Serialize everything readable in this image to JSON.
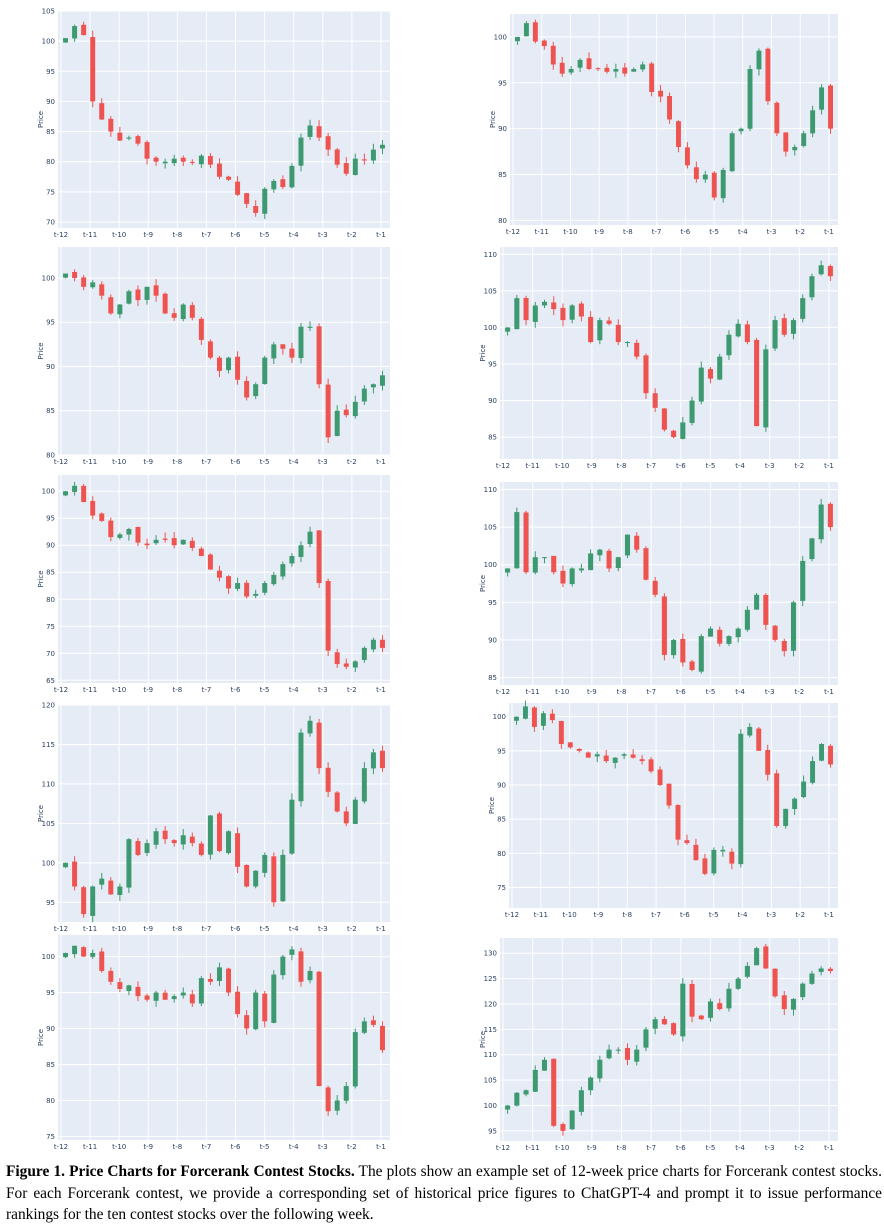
{
  "figure": {
    "caption_title": "Figure 1. Price Charts for Forcerank Contest Stocks.",
    "caption_body": "The plots show an example set of 12-week price charts for Forcerank contest stocks. For each Forcerank contest, we provide a corresponding set of historical price figures to ChatGPT-4 and prompt it to issue performance rankings for the ten contest stocks over the following week."
  },
  "colors": {
    "increasing": "#3d9970",
    "decreasing": "#ef5350",
    "plot_bg": "#e5ecf6",
    "grid": "#ffffff",
    "text": "#2a3f5f"
  },
  "chart_data": [
    {
      "type": "candlestick",
      "ylabel": "Price",
      "ylim": [
        69,
        105
      ],
      "yticks": [
        70,
        75,
        80,
        85,
        90,
        95,
        100,
        105
      ],
      "xticks": [
        "t-12",
        "t-11",
        "t-10",
        "t-9",
        "t-8",
        "t-7",
        "t-6",
        "t-5",
        "t-4",
        "t-3",
        "t-2",
        "t-1"
      ],
      "path": [
        100.5,
        102.5,
        101,
        90,
        87,
        85,
        83.5,
        84,
        83,
        80.5,
        80,
        80,
        80.5,
        80,
        79.8,
        81,
        79.5,
        77.5,
        77,
        74.5,
        73,
        71.5,
        75.5,
        76.8,
        75.8,
        79.3,
        84,
        86,
        84,
        82,
        79.5,
        78,
        80.5,
        80.2,
        82,
        82.8
      ]
    },
    {
      "type": "candlestick",
      "ylabel": "Price",
      "ylim": [
        79.5,
        102.5
      ],
      "yticks": [
        80,
        85,
        90,
        95,
        100
      ],
      "xticks": [
        "t-12",
        "t-11",
        "t-10",
        "t-9",
        "t-8",
        "t-7",
        "t-6",
        "t-5",
        "t-4",
        "t-3",
        "t-2",
        "t-1"
      ],
      "path": [
        100,
        101.5,
        99.5,
        99,
        97,
        96,
        96.5,
        97.5,
        96.5,
        96.5,
        96.2,
        96.5,
        96,
        96.5,
        97,
        94,
        93.5,
        91,
        88,
        86,
        84.5,
        85,
        82.5,
        85.5,
        89.5,
        90,
        96.5,
        98.5,
        93,
        89.5,
        87.5,
        88,
        89.5,
        92,
        94.5,
        90
      ]
    },
    {
      "type": "candlestick",
      "ylabel": "Price",
      "ylim": [
        80,
        103.5
      ],
      "yticks": [
        80,
        85,
        90,
        95,
        100
      ],
      "xticks": [
        "t-12",
        "t-11",
        "t-10",
        "t-9",
        "t-8",
        "t-7",
        "t-6",
        "t-5",
        "t-4",
        "t-3",
        "t-2",
        "t-1"
      ],
      "path": [
        100.5,
        100,
        99,
        99.5,
        98,
        96,
        97,
        98.5,
        97.5,
        99,
        98,
        96,
        95.5,
        97,
        95.5,
        93,
        91,
        89.5,
        91,
        88.5,
        86.5,
        88,
        91,
        92.5,
        92,
        91,
        94.5,
        94.5,
        88,
        82,
        85,
        84.5,
        86,
        87.5,
        88,
        89
      ]
    },
    {
      "type": "candlestick",
      "ylabel": "Price",
      "ylim": [
        82,
        111
      ],
      "yticks": [
        85,
        90,
        95,
        100,
        105,
        110
      ],
      "xticks": [
        "t-12",
        "t-11",
        "t-10",
        "t-9",
        "t-8",
        "t-7",
        "t-6",
        "t-5",
        "t-4",
        "t-3",
        "t-2",
        "t-1"
      ],
      "path": [
        100,
        104,
        101,
        103,
        103.5,
        102.5,
        101,
        103,
        101.5,
        98,
        101,
        100.5,
        98,
        98,
        96,
        91,
        89,
        86,
        85,
        87,
        90,
        94.5,
        93,
        96,
        99,
        100.5,
        98,
        86.5,
        97,
        101,
        99,
        101,
        104,
        107,
        108.5,
        107
      ]
    },
    {
      "type": "candlestick",
      "ylabel": "Price",
      "ylim": [
        64.5,
        103
      ],
      "yticks": [
        65,
        70,
        75,
        80,
        85,
        90,
        95,
        100
      ],
      "xticks": [
        "t-12",
        "t-11",
        "t-10",
        "t-9",
        "t-8",
        "t-7",
        "t-6",
        "t-5",
        "t-4",
        "t-3",
        "t-2",
        "t-1"
      ],
      "path": [
        100,
        101,
        98,
        95.5,
        94.5,
        91.5,
        92,
        93,
        90.5,
        90,
        91,
        91,
        90,
        91,
        89.5,
        88,
        85.5,
        84,
        82,
        83,
        80.5,
        81,
        83,
        84.5,
        86.5,
        88,
        90,
        92.5,
        83,
        70.5,
        68,
        67.5,
        68.5,
        71,
        72.5,
        71
      ]
    },
    {
      "type": "candlestick",
      "ylabel": "Price",
      "ylim": [
        84,
        111
      ],
      "yticks": [
        85,
        90,
        95,
        100,
        105,
        110
      ],
      "xticks": [
        "t-12",
        "t-11",
        "t-10",
        "t-9",
        "t-8",
        "t-7",
        "t-6",
        "t-5",
        "t-4",
        "t-3",
        "t-2",
        "t-1"
      ],
      "path": [
        99.5,
        107,
        99,
        101,
        101,
        99,
        97.5,
        99.5,
        99.5,
        101.5,
        102,
        99.5,
        101,
        104,
        102,
        98,
        96,
        88,
        90,
        87,
        86,
        90.5,
        91.5,
        89.5,
        90.5,
        91.5,
        94,
        96,
        92,
        90,
        88.5,
        95,
        100.5,
        103.5,
        108,
        105
      ]
    },
    {
      "type": "candlestick",
      "ylabel": "Price",
      "ylim": [
        92.5,
        120
      ],
      "yticks": [
        95,
        100,
        105,
        110,
        115,
        120
      ],
      "xticks": [
        "t-12",
        "t-11",
        "t-10",
        "t-9",
        "t-8",
        "t-7",
        "t-6",
        "t-5",
        "t-4",
        "t-3",
        "t-2",
        "t-1"
      ],
      "path": [
        100,
        97,
        93.5,
        97,
        98,
        96,
        97,
        103,
        101,
        102.5,
        104,
        103,
        102.5,
        103.5,
        102.5,
        101,
        106,
        101.5,
        104,
        99.5,
        97,
        99,
        101,
        95,
        101,
        108,
        116.5,
        118,
        112,
        109,
        106.5,
        105,
        108,
        112,
        114,
        112
      ]
    },
    {
      "type": "candlestick",
      "ylabel": "Price",
      "ylim": [
        72,
        102
      ],
      "yticks": [
        75,
        80,
        85,
        90,
        95,
        100
      ],
      "xticks": [
        "t-12",
        "t-11",
        "t-10",
        "t-9",
        "t-8",
        "t-7",
        "t-6",
        "t-5",
        "t-4",
        "t-3",
        "t-2",
        "t-1"
      ],
      "path": [
        100,
        101.5,
        98.5,
        100.5,
        99.5,
        96,
        95.5,
        95,
        94,
        94.5,
        93.5,
        94,
        94.5,
        94,
        93.5,
        92,
        90,
        87,
        82,
        81.5,
        79,
        77,
        80.5,
        80.5,
        78.5,
        97.5,
        98.5,
        95,
        91.5,
        84,
        86.5,
        88,
        90.5,
        93.5,
        96,
        93
      ]
    },
    {
      "type": "candlestick",
      "ylabel": "Price",
      "ylim": [
        74.5,
        103
      ],
      "yticks": [
        75,
        80,
        85,
        90,
        95,
        100
      ],
      "xticks": [
        "t-12",
        "t-11",
        "t-10",
        "t-9",
        "t-8",
        "t-7",
        "t-6",
        "t-5",
        "t-4",
        "t-3",
        "t-2",
        "t-1"
      ],
      "path": [
        100.5,
        101.5,
        100,
        100.5,
        98,
        96.5,
        95.5,
        96,
        94.5,
        94,
        95,
        94,
        94.5,
        95,
        93.5,
        97,
        96.5,
        98.5,
        95,
        92,
        90,
        95,
        91,
        97.5,
        100,
        101,
        96.5,
        98,
        82,
        78.5,
        80,
        82,
        89.5,
        91,
        90.5,
        87
      ]
    },
    {
      "type": "candlestick",
      "ylabel": "Price",
      "ylim": [
        93,
        133
      ],
      "yticks": [
        95,
        100,
        105,
        110,
        115,
        120,
        125,
        130
      ],
      "xticks": [
        "t-12",
        "t-11",
        "t-10",
        "t-9",
        "t-8",
        "t-7",
        "t-6",
        "t-5",
        "t-4",
        "t-3",
        "t-2",
        "t-1"
      ],
      "path": [
        100,
        102.5,
        103,
        107,
        109,
        96,
        95,
        99,
        103,
        105.5,
        109,
        111,
        111,
        109,
        111,
        115,
        117,
        116,
        114,
        124,
        117.5,
        117,
        120.5,
        119,
        123,
        125,
        127.5,
        131,
        127,
        121.5,
        119,
        121,
        124,
        126,
        127,
        126.5
      ]
    }
  ]
}
